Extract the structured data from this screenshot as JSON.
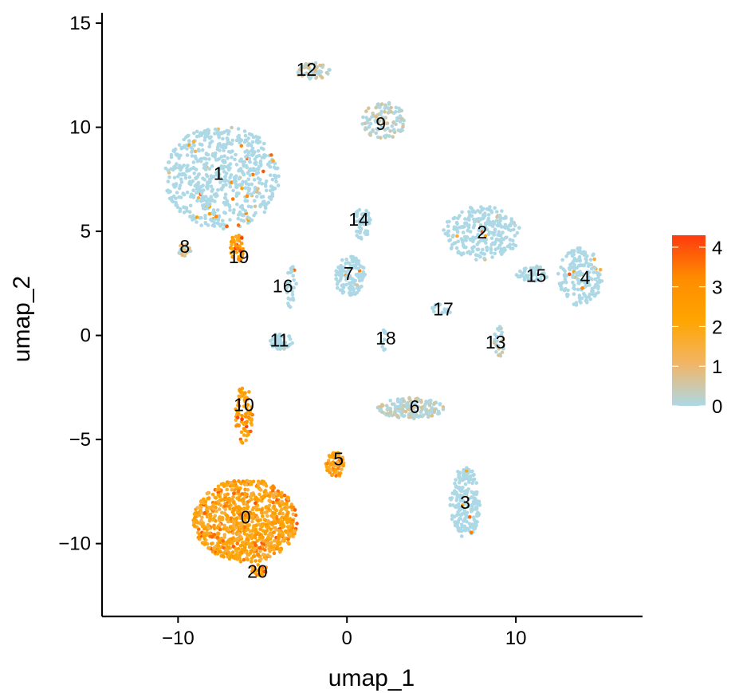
{
  "chart_data": {
    "type": "scatter",
    "xlabel": "umap_1",
    "ylabel": "umap_2",
    "xlim": [
      -14.5,
      17.5
    ],
    "ylim": [
      -13.5,
      15.5
    ],
    "x_ticks": [
      -10,
      0,
      10
    ],
    "x_tick_labels": [
      "−10",
      "0",
      "10"
    ],
    "y_ticks": [
      -10,
      -5,
      0,
      5,
      10,
      15
    ],
    "y_tick_labels": [
      "−10",
      "−5",
      "0",
      "5",
      "10",
      "15"
    ],
    "grid": false,
    "legend": {
      "placement": "right",
      "type": "colorbar",
      "range": [
        0,
        4.3
      ],
      "ticks": [
        0,
        1,
        2,
        3,
        4
      ],
      "tick_labels": [
        "0",
        "1",
        "2",
        "3",
        "4"
      ],
      "colors": [
        "#add8e6",
        "#f2b565",
        "#ffa500",
        "#ff8c00",
        "#ff3a0f"
      ]
    },
    "clusters": [
      {
        "label": "0",
        "x": -6.0,
        "y": -8.9,
        "rx": 3.1,
        "ry": 2.0,
        "expression": 2.0,
        "n": 900
      },
      {
        "label": "1",
        "x": -7.4,
        "y": 7.6,
        "rx": 3.4,
        "ry": 2.5,
        "expression": 0.0,
        "n": 650
      },
      {
        "label": "2",
        "x": 8.0,
        "y": 4.9,
        "rx": 2.3,
        "ry": 1.3,
        "expression": 0.0,
        "n": 260
      },
      {
        "label": "3",
        "x": 7.0,
        "y": -8.0,
        "rx": 0.9,
        "ry": 1.7,
        "expression": 0.0,
        "n": 200
      },
      {
        "label": "4",
        "x": 13.8,
        "y": 2.8,
        "rx": 1.3,
        "ry": 1.4,
        "expression": 0.0,
        "n": 180
      },
      {
        "label": "5",
        "x": -0.7,
        "y": -6.2,
        "rx": 0.6,
        "ry": 0.6,
        "expression": 1.8,
        "n": 70
      },
      {
        "label": "6",
        "x": 3.8,
        "y": -3.5,
        "rx": 2.0,
        "ry": 0.5,
        "expression": 0.1,
        "n": 170
      },
      {
        "label": "7",
        "x": 0.2,
        "y": 2.8,
        "rx": 0.9,
        "ry": 1.0,
        "expression": 0.0,
        "n": 120
      },
      {
        "label": "8",
        "x": -9.6,
        "y": 4.1,
        "rx": 0.4,
        "ry": 0.3,
        "expression": 0.4,
        "n": 25
      },
      {
        "label": "9",
        "x": 2.2,
        "y": 10.3,
        "rx": 1.3,
        "ry": 0.9,
        "expression": 0.1,
        "n": 110
      },
      {
        "label": "10",
        "x": -6.1,
        "y": -3.8,
        "rx": 0.5,
        "ry": 1.4,
        "expression": 2.4,
        "n": 80
      },
      {
        "label": "11",
        "x": -3.9,
        "y": -0.3,
        "rx": 0.7,
        "ry": 0.4,
        "expression": 0.0,
        "n": 55
      },
      {
        "label": "12",
        "x": -2.0,
        "y": 12.7,
        "rx": 1.1,
        "ry": 0.4,
        "expression": 0.2,
        "n": 55
      },
      {
        "label": "13",
        "x": 9.0,
        "y": -0.3,
        "rx": 0.3,
        "ry": 0.8,
        "expression": 0.1,
        "n": 25
      },
      {
        "label": "14",
        "x": 0.9,
        "y": 5.4,
        "rx": 0.5,
        "ry": 0.8,
        "expression": 0.0,
        "n": 55
      },
      {
        "label": "15",
        "x": 11.0,
        "y": 3.0,
        "rx": 1.0,
        "ry": 0.4,
        "expression": 0.0,
        "n": 50
      },
      {
        "label": "16",
        "x": -3.3,
        "y": 2.3,
        "rx": 0.3,
        "ry": 1.2,
        "expression": 0.0,
        "n": 30
      },
      {
        "label": "17",
        "x": 5.6,
        "y": 1.3,
        "rx": 0.7,
        "ry": 0.3,
        "expression": 0.0,
        "n": 15
      },
      {
        "label": "18",
        "x": 2.2,
        "y": -0.2,
        "rx": 0.2,
        "ry": 0.5,
        "expression": 0.0,
        "n": 10
      },
      {
        "label": "19",
        "x": -6.5,
        "y": 4.2,
        "rx": 0.4,
        "ry": 0.7,
        "expression": 2.4,
        "n": 45
      },
      {
        "label": "20",
        "x": -5.2,
        "y": -11.3,
        "rx": 0.5,
        "ry": 0.3,
        "expression": 2.2,
        "n": 25
      }
    ],
    "cluster_label_positions": [
      {
        "label": "0",
        "x": -6.0,
        "y": -8.8
      },
      {
        "label": "1",
        "x": -7.6,
        "y": 7.7
      },
      {
        "label": "2",
        "x": 8.0,
        "y": 4.9
      },
      {
        "label": "3",
        "x": 7.0,
        "y": -8.1
      },
      {
        "label": "4",
        "x": 14.1,
        "y": 2.7
      },
      {
        "label": "5",
        "x": -0.5,
        "y": -6.0
      },
      {
        "label": "6",
        "x": 4.0,
        "y": -3.5
      },
      {
        "label": "7",
        "x": 0.1,
        "y": 2.9
      },
      {
        "label": "8",
        "x": -9.6,
        "y": 4.2
      },
      {
        "label": "9",
        "x": 2.0,
        "y": 10.1
      },
      {
        "label": "10",
        "x": -6.1,
        "y": -3.4
      },
      {
        "label": "11",
        "x": -4.0,
        "y": -0.3
      },
      {
        "label": "12",
        "x": -2.4,
        "y": 12.7
      },
      {
        "label": "13",
        "x": 8.8,
        "y": -0.4
      },
      {
        "label": "14",
        "x": 0.7,
        "y": 5.5
      },
      {
        "label": "15",
        "x": 11.2,
        "y": 2.8
      },
      {
        "label": "16",
        "x": -3.8,
        "y": 2.3
      },
      {
        "label": "17",
        "x": 5.7,
        "y": 1.2
      },
      {
        "label": "18",
        "x": 2.3,
        "y": -0.2
      },
      {
        "label": "19",
        "x": -6.4,
        "y": 3.7
      },
      {
        "label": "20",
        "x": -5.3,
        "y": -11.4
      }
    ],
    "point_color_scale": "expression"
  }
}
